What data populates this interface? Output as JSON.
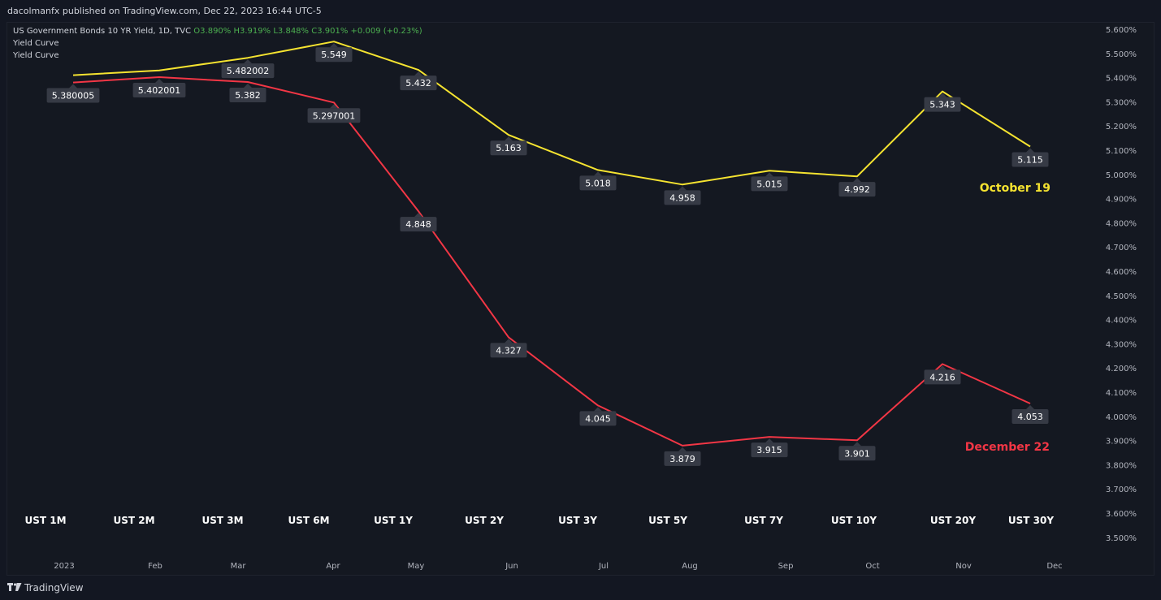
{
  "header": {
    "published": "dacolmanfx published on TradingView.com, Dec 22, 2023 16:44 UTC-5"
  },
  "legend": {
    "symbol": "US Government Bonds 10 YR Yield, 1D, TVC",
    "open": "O3.890%",
    "high": "H3.919%",
    "low": "L3.848%",
    "close": "C3.901%",
    "change": "+0.009 (+0.23%)",
    "indicator1": "Yield Curve",
    "indicator2": "Yield Curve"
  },
  "footer": {
    "brand": "TradingView"
  },
  "colors": {
    "series_oct": "#f5e330",
    "series_dec": "#f23645",
    "label_bg": "#363a45",
    "axis_text": "#b2b5be"
  },
  "chart_data": {
    "type": "line",
    "categories": [
      "UST 1M",
      "UST 2M",
      "UST 3M",
      "UST 6M",
      "UST 1Y",
      "UST 2Y",
      "UST 3Y",
      "UST 5Y",
      "UST 7Y",
      "UST 10Y",
      "UST 20Y",
      "UST 30Y"
    ],
    "series": [
      {
        "name": "October 19",
        "values": [
          5.41,
          5.43,
          5.482,
          5.549,
          5.432,
          5.163,
          5.018,
          4.958,
          5.015,
          4.992,
          5.343,
          5.115
        ],
        "labels": [
          "",
          "",
          "5.482002",
          "5.549",
          "5.432",
          "5.163",
          "5.018",
          "4.958",
          "5.015",
          "4.992",
          "5.343",
          "5.115"
        ]
      },
      {
        "name": "December 22",
        "values": [
          5.38,
          5.402,
          5.382,
          5.297,
          4.848,
          4.327,
          4.045,
          3.879,
          3.915,
          3.901,
          4.216,
          4.053
        ],
        "labels": [
          "5.380005",
          "5.402001",
          "5.382",
          "5.297001",
          "4.848",
          "4.327",
          "4.045",
          "3.879",
          "3.915",
          "3.901",
          "4.216",
          "4.053"
        ]
      }
    ],
    "ylim": [
      3.45,
      5.65
    ],
    "yticks": [
      "5.600%",
      "5.500%",
      "5.400%",
      "5.300%",
      "5.200%",
      "5.100%",
      "5.000%",
      "4.900%",
      "4.800%",
      "4.700%",
      "4.600%",
      "4.500%",
      "4.400%",
      "4.300%",
      "4.200%",
      "4.100%",
      "4.000%",
      "3.900%",
      "3.800%",
      "3.700%",
      "3.600%",
      "3.500%"
    ],
    "time_labels": [
      "2023",
      "Feb",
      "Mar",
      "Apr",
      "May",
      "Jun",
      "Jul",
      "Aug",
      "Sep",
      "Oct",
      "Nov",
      "Dec"
    ],
    "grid": false
  }
}
